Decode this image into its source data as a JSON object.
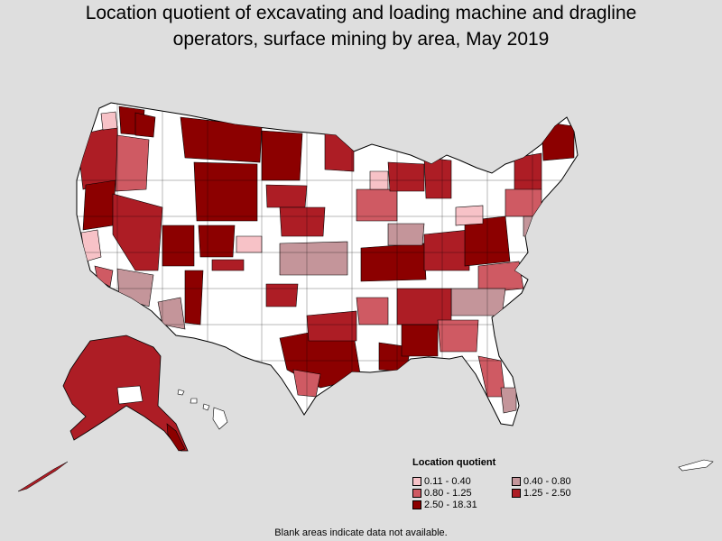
{
  "title": {
    "line1": "Location quotient of excavating and loading machine and dragline",
    "line2": "operators, surface mining by area, May 2019"
  },
  "legend": {
    "title": "Location quotient",
    "items": [
      {
        "label": "0.11 - 0.40",
        "color": "#f7c2c7"
      },
      {
        "label": "0.40 - 0.80",
        "color": "#c4959a"
      },
      {
        "label": "0.80 - 1.25",
        "color": "#cf5a63"
      },
      {
        "label": "1.25 - 2.50",
        "color": "#ad1d25"
      },
      {
        "label": "2.50 - 18.31",
        "color": "#8c0000"
      }
    ]
  },
  "footnote": "Blank areas indicate data not available.",
  "colors": {
    "background": "#dedede",
    "no_data": "#ffffff",
    "border": "#000000"
  }
}
